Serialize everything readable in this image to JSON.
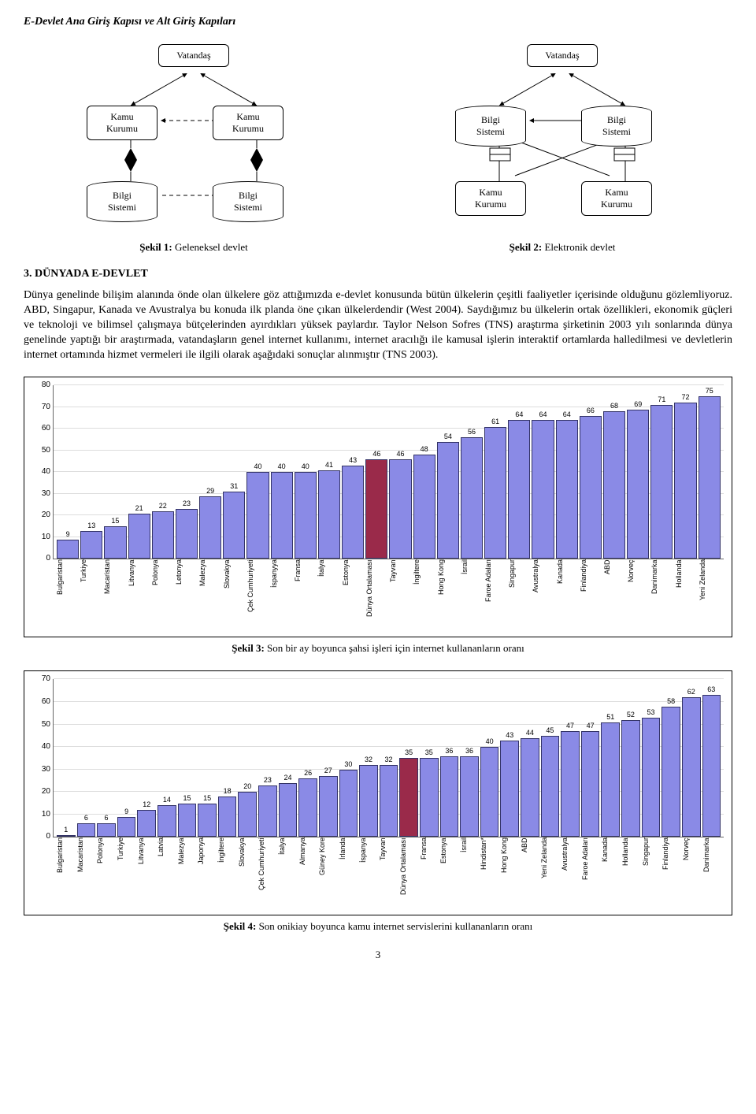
{
  "page_title": "E-Devlet Ana Giriş Kapısı ve Alt Giriş Kapıları",
  "diagram_left": {
    "top": "Vatandaş",
    "mid_left": "Kamu\nKurumu",
    "mid_right": "Kamu\nKurumu",
    "bot_left": "Bilgi\nSistemi",
    "bot_right": "Bilgi\nSistemi",
    "caption_label": "Şekil 1:",
    "caption_text": " Geleneksel devlet"
  },
  "diagram_right": {
    "top": "Vatandaş",
    "mid_left": "Bilgi\nSistemi",
    "mid_right": "Bilgi\nSistemi",
    "bot_left": "Kamu\nKurumu",
    "bot_right": "Kamu\nKurumu",
    "caption_label": "Şekil 2:",
    "caption_text": " Elektronik devlet"
  },
  "section_heading": "3. DÜNYADA E-DEVLET",
  "body_text": "Dünya genelinde bilişim alanında önde olan ülkelere göz attığımızda e-devlet konusunda bütün ülkelerin çeşitli faaliyetler içerisinde olduğunu gözlemliyoruz. ABD, Singapur, Kanada ve Avustralya bu konuda ilk planda öne çıkan ülkelerdendir (West 2004). Saydığımız bu ülkelerin ortak özellikleri, ekonomik güçleri ve teknoloji ve bilimsel çalışmaya bütçelerinden ayırdıkları yüksek paylardır. Taylor Nelson Sofres (TNS) araştırma şirketinin 2003 yılı sonlarında dünya genelinde yaptığı bir araştırmada, vatandaşların genel internet kullanımı, internet aracılığı ile kamusal işlerin interaktif ortamlarda halledilmesi ve devletlerin internet ortamında hizmet vermeleri ile ilgili olarak aşağıdaki sonuçlar alınmıştır (TNS 2003).",
  "chart1": {
    "ymax": 80,
    "ytick_step": 10,
    "bar_color": "#8a8ae6",
    "bar_border": "#333366",
    "highlight_color": "#9a2a4a",
    "highlight_index": 13,
    "categories": [
      "Bulgaristan",
      "Turkiye",
      "Macaristan",
      "Litvanya",
      "Polonya",
      "Letonya",
      "Malezya",
      "Slovakya",
      "Çek Cumhuriyeti",
      "İspanyya",
      "Fransa",
      "İtalya",
      "Estonya",
      "Dünya Ortalaması",
      "Tayvan",
      "İngiltere",
      "Hong Kong",
      "İsrail",
      "Faroe Adaları",
      "Singapur",
      "Avustralya",
      "Kanada",
      "Finlandiya",
      "ABD",
      "Norveç",
      "Danimarka",
      "Hollanda",
      "Yeni Zelanda"
    ],
    "values": [
      9,
      13,
      15,
      21,
      22,
      23,
      29,
      31,
      40,
      40,
      40,
      41,
      43,
      46,
      46,
      48,
      54,
      56,
      61,
      64,
      64,
      64,
      66,
      68,
      69,
      71,
      72,
      75
    ],
    "caption_label": "Şekil 3:",
    "caption_text": " Son bir ay boyunca şahsi işleri için internet kullananların oranı"
  },
  "chart2": {
    "ymax": 70,
    "ytick_step": 10,
    "bar_color": "#8a8ae6",
    "bar_border": "#333366",
    "highlight_color": "#9a2a4a",
    "highlight_index": 17,
    "categories": [
      "Bulgaristan",
      "Macaristan",
      "Polonya",
      "Turkiye",
      "Litvanya",
      "Latvia",
      "Malezya",
      "Japonya",
      "İngiltere",
      "Slovakya",
      "Çek Cumhuriyeti",
      "İtalya",
      "Almanya",
      "Güney Kore",
      "İrlanda",
      "İspanya",
      "Tayvan",
      "Dünya Ortalaması",
      "Fransa",
      "Estonya",
      "İsrail",
      "Hindistan*",
      "Hong Kong",
      "ABD",
      "Yeni Zelanda",
      "Avustralya",
      "Faroe Adaları",
      "Kanada",
      "Hollanda",
      "Singapur",
      "Finlandiya",
      "Norveç",
      "Danimarka"
    ],
    "values": [
      1,
      6,
      6,
      9,
      12,
      14,
      15,
      15,
      18,
      20,
      23,
      24,
      26,
      27,
      30,
      32,
      32,
      35,
      35,
      36,
      36,
      40,
      43,
      44,
      45,
      47,
      47,
      51,
      52,
      53,
      58,
      62,
      63
    ],
    "caption_label": "Şekil 4:",
    "caption_text": " Son onikiay boyunca kamu internet servislerini kullananların oranı"
  },
  "page_number": "3"
}
